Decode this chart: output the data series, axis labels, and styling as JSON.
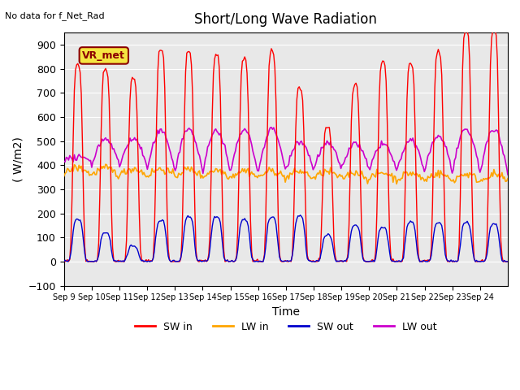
{
  "title": "Short/Long Wave Radiation",
  "xlabel": "Time",
  "ylabel": "( W/m2)",
  "top_label": "No data for f_Net_Rad",
  "legend_label": "VR_met",
  "ylim": [
    -100,
    950
  ],
  "yticks": [
    -100,
    0,
    100,
    200,
    300,
    400,
    500,
    600,
    700,
    800,
    900
  ],
  "xtick_labels": [
    "Sep 9",
    "Sep 10",
    "Sep 11",
    "Sep 12",
    "Sep 13",
    "Sep 14",
    "Sep 15",
    "Sep 16",
    "Sep 17",
    "Sep 18",
    "Sep 19",
    "Sep 20",
    "Sep 21",
    "Sep 22",
    "Sep 23",
    "Sep 24"
  ],
  "colors": {
    "SW_in": "#ff0000",
    "LW_in": "#ffa500",
    "SW_out": "#0000cc",
    "LW_out": "#cc00cc"
  },
  "background_color": "#e8e8e8",
  "legend_entries": [
    "SW in",
    "LW in",
    "SW out",
    "LW out"
  ]
}
